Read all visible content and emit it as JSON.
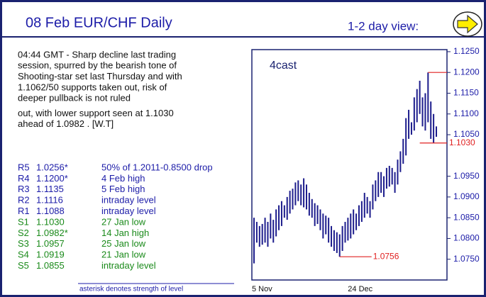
{
  "header": {
    "title": "08 Feb  EUR/CHF  Daily",
    "view": "1-2 day view:"
  },
  "commentary": [
    [
      "04:44 GMT - Sharp decline last trading",
      "session, spurred by the bearish tone of",
      "Shooting-star set last Thursday and with",
      "1.1062/50 supports taken out, risk of",
      "deeper pullback is not ruled"
    ],
    [
      "out, with lower support seen at 1.1030",
      "ahead of 1.0982 . [W.T]"
    ]
  ],
  "levels": [
    [
      "R5",
      "1.0256*",
      "50% of 1.2011-0.8500 drop"
    ],
    [
      "R4",
      "1.1200*",
      "4 Feb high"
    ],
    [
      "R3",
      "1.1135",
      "5 Feb high"
    ],
    [
      "R2",
      "1.1116",
      "intraday level"
    ],
    [
      "R1",
      "1.1088",
      "intraday level"
    ],
    [
      "S1",
      "1.1030",
      "27 Jan low"
    ],
    [
      "S2",
      "1.0982*",
      "14 Jan high"
    ],
    [
      "S3",
      "1.0957",
      "25 Jan low"
    ],
    [
      "S4",
      "1.0919",
      "21 Jan low"
    ],
    [
      "S5",
      "1.0855",
      "intraday level"
    ]
  ],
  "footnote": "asterisk denotes strength of level",
  "chart_data": {
    "type": "ohlc",
    "title": "4cast",
    "color": "#1c1c8c",
    "categories": [
      "5 Nov",
      null,
      null,
      null,
      null,
      null,
      null,
      null,
      null,
      null,
      null,
      null,
      null,
      null,
      null,
      null,
      null,
      null,
      null,
      null,
      null,
      null,
      null,
      null,
      null,
      null,
      null,
      null,
      null,
      null,
      null,
      null,
      null,
      null,
      null,
      "24 Dec",
      null,
      null,
      null,
      null,
      null,
      null,
      null,
      null,
      null,
      null,
      null,
      null,
      null,
      null,
      null,
      null,
      null,
      null,
      null,
      null,
      null,
      null,
      null,
      null,
      null,
      null,
      null,
      null,
      null,
      null,
      null
    ],
    "low": [
      1.074,
      1.079,
      1.078,
      1.0785,
      1.079,
      1.078,
      1.08,
      1.079,
      1.0805,
      1.082,
      1.083,
      1.085,
      1.0845,
      1.086,
      1.087,
      1.088,
      1.089,
      1.088,
      1.0875,
      1.087,
      1.0855,
      1.085,
      1.083,
      1.0835,
      1.082,
      1.08,
      1.081,
      1.079,
      1.078,
      1.077,
      1.0765,
      1.0756,
      1.077,
      1.079,
      1.0795,
      1.08,
      1.081,
      1.082,
      1.083,
      1.084,
      1.085,
      1.086,
      1.085,
      1.087,
      1.089,
      1.09,
      1.091,
      1.09,
      1.092,
      1.0925,
      1.093,
      1.091,
      1.093,
      1.096,
      1.098,
      1.1,
      1.104,
      1.105,
      1.106,
      1.108,
      1.11,
      1.107,
      1.106,
      1.108,
      1.104,
      1.103,
      1.1045
    ],
    "high": [
      1.085,
      1.084,
      1.083,
      1.0835,
      1.085,
      1.084,
      1.086,
      1.0845,
      1.087,
      1.088,
      1.089,
      1.088,
      1.09,
      1.0915,
      1.092,
      1.0935,
      1.094,
      1.093,
      1.0945,
      1.093,
      1.091,
      1.0895,
      1.0885,
      1.088,
      1.087,
      1.086,
      1.0855,
      1.085,
      1.083,
      1.082,
      1.0815,
      1.081,
      1.083,
      1.084,
      1.085,
      1.086,
      1.087,
      1.086,
      1.088,
      1.089,
      1.091,
      1.09,
      1.089,
      1.093,
      1.094,
      1.096,
      1.096,
      1.095,
      1.097,
      1.0975,
      1.097,
      1.096,
      1.099,
      1.101,
      1.104,
      1.109,
      1.111,
      1.108,
      1.114,
      1.116,
      1.118,
      1.114,
      1.115,
      1.12,
      1.113,
      1.11,
      1.107
    ],
    "ylim": [
      1.07,
      1.1255
    ],
    "yticks": [
      {
        "value": 1.125,
        "label": "1.1250"
      },
      {
        "value": 1.12,
        "label": "1.1200"
      },
      {
        "value": 1.115,
        "label": "1.1150"
      },
      {
        "value": 1.11,
        "label": "1.1100"
      },
      {
        "value": 1.105,
        "label": "1.1050"
      },
      {
        "value": 1.095,
        "label": "1.0950"
      },
      {
        "value": 1.09,
        "label": "1.0900"
      },
      {
        "value": 1.085,
        "label": "1.0850"
      },
      {
        "value": 1.08,
        "label": "1.0800"
      },
      {
        "value": 1.075,
        "label": "1.0750"
      }
    ],
    "annotations": [
      {
        "value": 1.12,
        "index": 63
      },
      {
        "value": 1.103,
        "label": "1.1030",
        "index": 60
      },
      {
        "value": 1.0756,
        "label": "1.0756",
        "index": 31
      }
    ],
    "annotation_color": "#e02020"
  }
}
